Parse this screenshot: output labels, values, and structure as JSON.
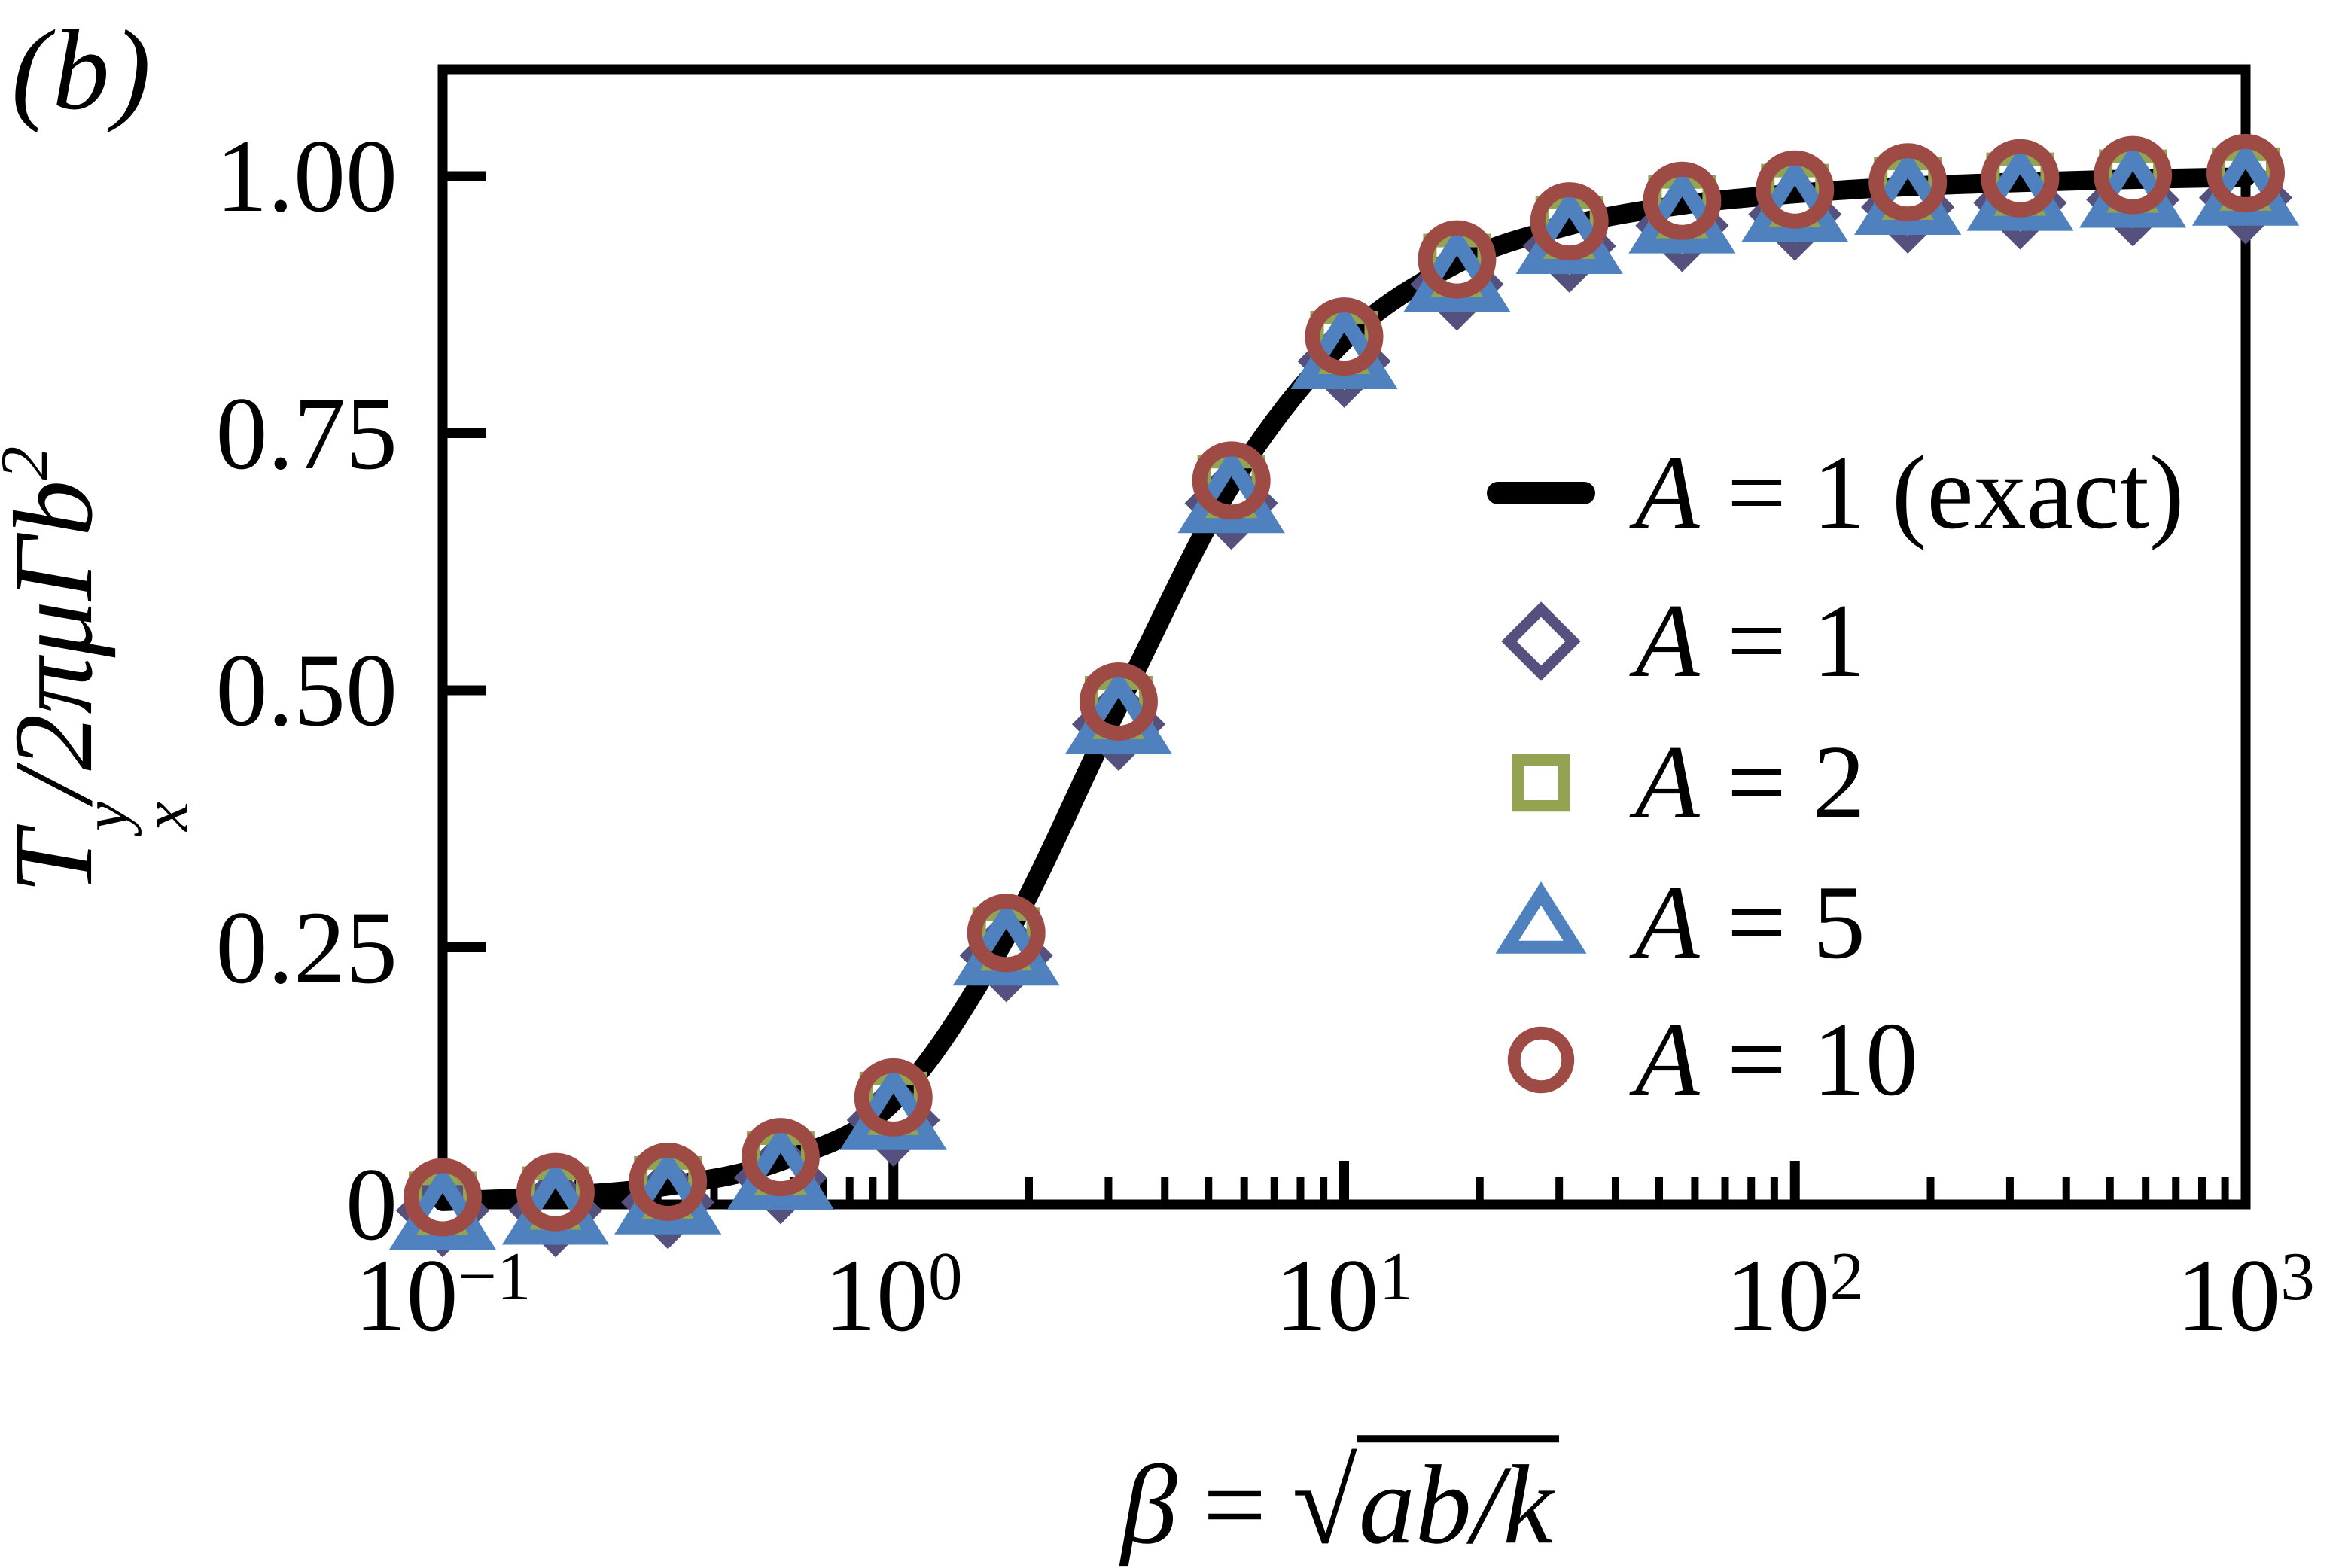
{
  "figure": {
    "panel_label": "(b)",
    "background": "#ffffff",
    "axis_color": "#000000"
  },
  "y_axis": {
    "title_parts": {
      "symbol": "T",
      "superscript": "y",
      "subscript": "x",
      "denominator": "/2πμΓb",
      "exponent": "2"
    },
    "ticks": [
      {
        "label": "1.00",
        "value": 1.0
      },
      {
        "label": "0.75",
        "value": 0.75
      },
      {
        "label": "0.50",
        "value": 0.5
      },
      {
        "label": "0.25",
        "value": 0.25
      },
      {
        "label": "0",
        "value": 0
      }
    ],
    "range": [
      0,
      1.1
    ]
  },
  "x_axis": {
    "scale": "log",
    "title_parts": {
      "symbol": "β",
      "equals": "=",
      "radical": "√",
      "radicand": "ab/k"
    },
    "ticks": [
      {
        "base": "10",
        "exponent": "−1",
        "value": 0.1
      },
      {
        "base": "10",
        "exponent": "0",
        "value": 1
      },
      {
        "base": "10",
        "exponent": "1",
        "value": 10
      },
      {
        "base": "10",
        "exponent": "2",
        "value": 100
      },
      {
        "base": "10",
        "exponent": "3",
        "value": 1000
      }
    ],
    "minor_tick_multiples": [
      2,
      3,
      4,
      5,
      6,
      7,
      8,
      9
    ],
    "range": [
      0.1,
      1000
    ]
  },
  "chart_data": {
    "type": "line",
    "title": "",
    "xlabel": "β = √(ab/k)",
    "ylabel": "T_x^y / 2πμΓb²",
    "xlim": [
      0.1,
      1000
    ],
    "ylim": [
      0,
      1.1
    ],
    "grid": false,
    "legend_position": "inside center-right",
    "x": [
      0.1,
      0.178,
      0.316,
      0.562,
      1,
      1.78,
      3.16,
      5.62,
      10,
      17.8,
      31.6,
      56.2,
      100,
      178,
      316,
      562,
      1000
    ],
    "series": [
      {
        "name": "A = 1 (exact)",
        "style": "line",
        "marker": "none",
        "color": "#000000",
        "line_width": 26,
        "values": [
          0.003,
          0.008,
          0.018,
          0.042,
          0.1,
          0.26,
          0.485,
          0.7,
          0.84,
          0.915,
          0.952,
          0.972,
          0.983,
          0.99,
          0.994,
          0.997,
          0.999
        ]
      },
      {
        "name": "A = 1",
        "style": "marker",
        "marker": "diamond",
        "color": "#55517F",
        "values": [
          -0.006,
          -0.006,
          0.002,
          0.026,
          0.082,
          0.242,
          0.467,
          0.682,
          0.82,
          0.895,
          0.932,
          0.952,
          0.963,
          0.97,
          0.974,
          0.977,
          0.979
        ]
      },
      {
        "name": "A = 2",
        "style": "marker",
        "marker": "square",
        "color": "#92A452",
        "values": [
          -0.001,
          0.004,
          0.014,
          0.038,
          0.096,
          0.256,
          0.481,
          0.696,
          0.836,
          0.911,
          0.948,
          0.968,
          0.979,
          0.986,
          0.99,
          0.993,
          0.995
        ]
      },
      {
        "name": "A = 5",
        "style": "marker",
        "marker": "triangle",
        "color": "#4E81BD",
        "values": [
          -0.009,
          -0.004,
          0.006,
          0.03,
          0.088,
          0.248,
          0.473,
          0.688,
          0.828,
          0.903,
          0.94,
          0.96,
          0.971,
          0.978,
          0.982,
          0.985,
          0.987
        ]
      },
      {
        "name": "A = 10",
        "style": "marker",
        "marker": "circle",
        "color": "#9E4A45",
        "values": [
          0.007,
          0.012,
          0.022,
          0.046,
          0.104,
          0.264,
          0.489,
          0.704,
          0.844,
          0.919,
          0.956,
          0.976,
          0.987,
          0.994,
          0.998,
          1.001,
          1.003
        ]
      }
    ]
  },
  "legend": {
    "entries": [
      {
        "swatch": "line",
        "color": "#000000",
        "var": "A",
        "rest": "= 1 (exact)"
      },
      {
        "swatch": "diamond",
        "color": "#55517F",
        "var": "A",
        "rest": "= 1"
      },
      {
        "swatch": "square",
        "color": "#92A452",
        "var": "A",
        "rest": "= 2"
      },
      {
        "swatch": "triangle",
        "color": "#4E81BD",
        "var": "A",
        "rest": "= 5"
      },
      {
        "swatch": "circle",
        "color": "#9E4A45",
        "var": "A",
        "rest": "= 10"
      }
    ]
  }
}
